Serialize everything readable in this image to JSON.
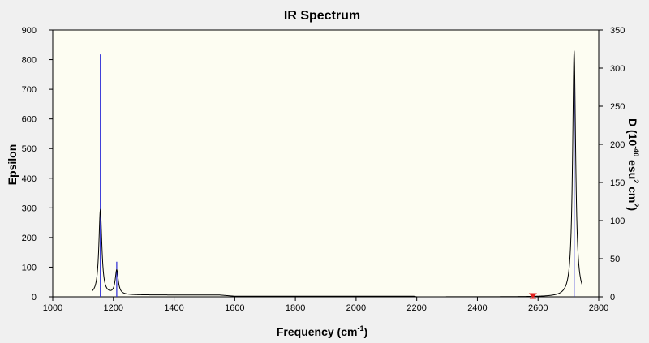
{
  "chart_data": {
    "type": "line",
    "title": "IR Spectrum",
    "xlabel": {
      "main": "Frequency (cm",
      "sup": "-1",
      "tail": ")"
    },
    "ylabel_left": "Epsilon",
    "ylabel_right": {
      "p1": "D (10",
      "sup1": "-40",
      "p2": " esu",
      "sup2": "2",
      "p3": " cm",
      "sup3": "2",
      "p4": ")"
    },
    "xlim": [
      1000,
      2800
    ],
    "ylim_left": [
      0,
      900
    ],
    "ylim_right": [
      0,
      350
    ],
    "x_ticks": [
      1000,
      1200,
      1400,
      1600,
      1800,
      2000,
      2200,
      2400,
      2600,
      2800
    ],
    "y_left_ticks": [
      0,
      100,
      200,
      300,
      400,
      500,
      600,
      700,
      800,
      900
    ],
    "y_right_ticks": [
      0,
      50,
      100,
      150,
      200,
      250,
      300,
      350
    ],
    "grid": false,
    "plot_background": "#fdfdf2",
    "spectrum_color": "#000000",
    "stick_color": "#2b2bd6",
    "marker_color": "#e0201d",
    "spectrum_peaks": [
      {
        "frequency": 1157,
        "epsilon": 285,
        "half_width": 6
      },
      {
        "frequency": 1211,
        "epsilon": 82,
        "half_width": 6
      },
      {
        "frequency": 2719,
        "epsilon": 830,
        "half_width": 6
      }
    ],
    "spectrum_range": [
      1130,
      2745
    ],
    "spectrum_baseline": [
      {
        "x": 1250,
        "epsilon": 6
      },
      {
        "x": 1550,
        "epsilon": 6
      },
      {
        "x": 1600,
        "epsilon": 2
      },
      {
        "x": 2190,
        "epsilon": 2
      },
      {
        "x": 2200,
        "epsilon": 0
      }
    ],
    "sticks": [
      {
        "frequency": 1157,
        "D": 318
      },
      {
        "frequency": 1211,
        "D": 46
      },
      {
        "frequency": 2719,
        "D": 315
      }
    ],
    "marker": {
      "frequency": 2583,
      "epsilon": 0
    }
  }
}
